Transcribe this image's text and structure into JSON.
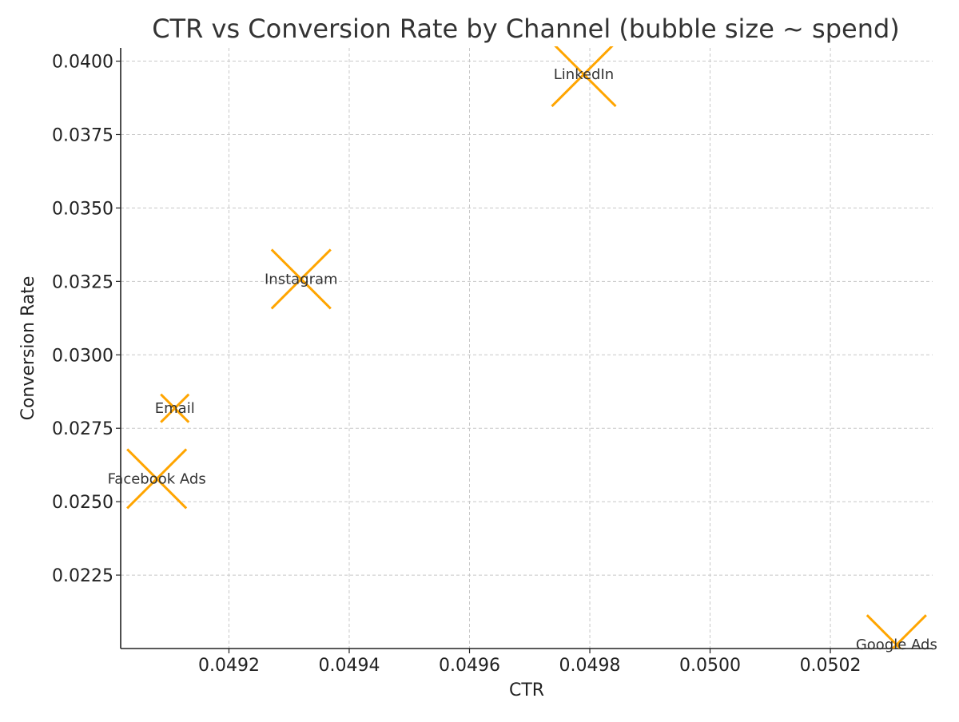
{
  "chart_data": {
    "type": "scatter",
    "title": "CTR vs Conversion Rate by Channel (bubble size ~ spend)",
    "xlabel": "CTR",
    "ylabel": "Conversion Rate",
    "xlim": [
      0.04902,
      0.05037
    ],
    "ylim": [
      0.02,
      0.04045
    ],
    "xticks": [
      0.0492,
      0.0494,
      0.0496,
      0.0498,
      0.05,
      0.0502
    ],
    "xtick_labels": [
      "0.0492",
      "0.0494",
      "0.0496",
      "0.0498",
      "0.0500",
      "0.0502"
    ],
    "yticks": [
      0.0225,
      0.025,
      0.0275,
      0.03,
      0.0325,
      0.035,
      0.0375,
      0.04
    ],
    "ytick_labels": [
      "0.0225",
      "0.0250",
      "0.0275",
      "0.0300",
      "0.0325",
      "0.0350",
      "0.0375",
      "0.0400"
    ],
    "grid": true,
    "marker": "x",
    "color": "#FFA500",
    "points": [
      {
        "label": "LinkedIn",
        "x": 0.04979,
        "y": 0.03955,
        "size": 1.0
      },
      {
        "label": "Instagram",
        "x": 0.04932,
        "y": 0.03258,
        "size": 0.9
      },
      {
        "label": "Email",
        "x": 0.04911,
        "y": 0.02818,
        "size": 0.25
      },
      {
        "label": "Facebook Ads",
        "x": 0.04908,
        "y": 0.02578,
        "size": 0.9
      },
      {
        "label": "Google Ads",
        "x": 0.05031,
        "y": 0.02013,
        "size": 0.9
      }
    ]
  }
}
